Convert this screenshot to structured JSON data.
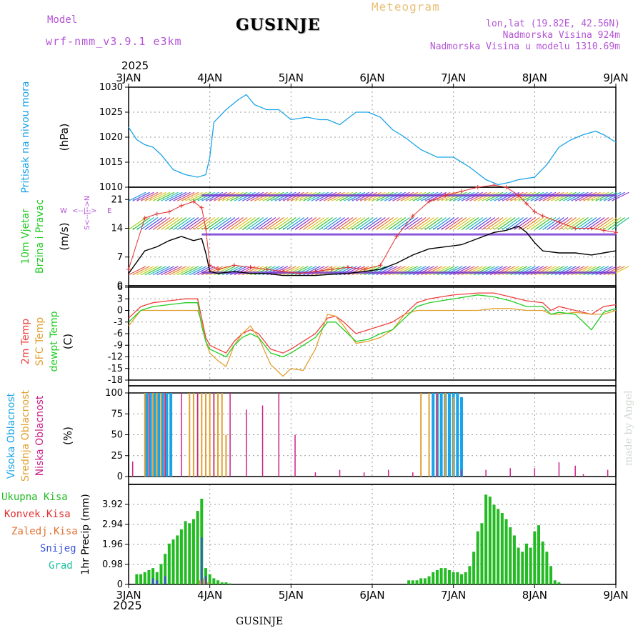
{
  "header": {
    "model_label": "Model",
    "model_name": "wrf-nmm_v3.9.1 e3km",
    "station": "GUSINJE",
    "title": "Meteogram",
    "coords": "lon,lat (19.82E, 42.56N)",
    "elevation": "Nadmorska Visina 924m",
    "model_elevation": "Nadmorska Visina u modelu 1310.69m",
    "year": "2025",
    "bottom_station": "GUSINJE",
    "credit": "made by Angel"
  },
  "colors": {
    "header_purple": "#b455d6",
    "header_orange": "#e8c07a",
    "pressure": "#1aa3e8",
    "temp2m": "#f04040",
    "sfc_temp": "#e0a030",
    "dewpt": "#22cc22",
    "high_cloud": "#1aa3e8",
    "mid_cloud": "#e0a030",
    "low_cloud": "#cc2288",
    "rain": "#22bb22",
    "snow": "#3a55d6"
  },
  "chart_data": [
    {
      "type": "line",
      "panel": "pressure",
      "title": "Pritisak na nivou mora",
      "ylabel": "(hPa)",
      "ylim": [
        1010,
        1030
      ],
      "yticks": [
        "1030",
        "1025",
        "1020",
        "1015",
        "1010"
      ],
      "x_days": [
        "3JAN",
        "4JAN",
        "5JAN",
        "6JAN",
        "7JAN",
        "8JAN",
        "9JAN"
      ],
      "x": [
        0,
        0.1,
        0.2,
        0.3,
        0.4,
        0.55,
        0.7,
        0.85,
        0.95,
        1.0,
        1.05,
        1.2,
        1.35,
        1.45,
        1.55,
        1.7,
        1.85,
        2.0,
        2.2,
        2.35,
        2.45,
        2.6,
        2.8,
        2.95,
        3.1,
        3.25,
        3.4,
        3.6,
        3.8,
        4.0,
        4.2,
        4.4,
        4.55,
        4.7,
        4.8,
        5.0,
        5.15,
        5.3,
        5.45,
        5.6,
        5.75,
        5.85,
        6.0
      ],
      "values": [
        1022,
        1019.5,
        1018.5,
        1018,
        1016.5,
        1013.5,
        1012.5,
        1012,
        1012.5,
        1016,
        1023,
        1025.5,
        1027.5,
        1028.5,
        1026.5,
        1025.5,
        1025.5,
        1023.5,
        1024,
        1023.5,
        1023.5,
        1022.5,
        1025,
        1025,
        1024,
        1021.5,
        1020,
        1017.5,
        1016,
        1016,
        1014,
        1011.5,
        1010.5,
        1011,
        1011.5,
        1012,
        1014.5,
        1018,
        1019.5,
        1020.5,
        1021.2,
        1020.5,
        1019
      ]
    },
    {
      "type": "line",
      "panel": "wind",
      "title": "10m Vjetar",
      "subtitle": "Brzina i Pravac",
      "ylabel": "(m/s)",
      "ylim": [
        0,
        24
      ],
      "yticks": [
        "21",
        "14",
        "7",
        "0"
      ],
      "direction_legend": [
        "W",
        "<--|-->",
        "E",
        "S<--|-->N"
      ],
      "x": [
        0,
        0.2,
        0.35,
        0.5,
        0.65,
        0.8,
        0.9,
        0.95,
        1.0,
        1.1,
        1.3,
        1.5,
        1.7,
        1.9,
        2.1,
        2.3,
        2.5,
        2.7,
        2.9,
        3.1,
        3.3,
        3.5,
        3.7,
        3.9,
        4.1,
        4.3,
        4.5,
        4.65,
        4.8,
        4.9,
        5.0,
        5.1,
        5.3,
        5.5,
        5.7,
        5.85,
        6.0
      ],
      "speed": [
        3,
        8.5,
        9.5,
        11,
        12,
        11,
        11.5,
        8,
        3.5,
        3,
        3.5,
        3,
        3,
        2.5,
        2.5,
        2.5,
        2.8,
        3,
        3.5,
        4,
        5.5,
        7.5,
        9,
        9.5,
        10,
        11.5,
        13,
        13.5,
        14.5,
        13,
        10.5,
        8.5,
        8,
        8,
        7.5,
        8,
        8.5
      ],
      "gusts": [
        4,
        16.5,
        17.5,
        18,
        19.5,
        20.5,
        19,
        14,
        5,
        4,
        5,
        4.5,
        4,
        3.5,
        3,
        3.5,
        4,
        4.5,
        4,
        5,
        12,
        17,
        20.5,
        22,
        23,
        24,
        24.5,
        24,
        22,
        20,
        18,
        17,
        15.5,
        14,
        14,
        13.5,
        13
      ]
    },
    {
      "type": "line",
      "panel": "temperature",
      "titles": [
        "2m Temp",
        "SFC Temp",
        "dewpt Temp"
      ],
      "ylabel": "(C)",
      "ylim": [
        -18,
        6
      ],
      "yticks": [
        "6",
        "3",
        "0",
        "-3",
        "-6",
        "-9",
        "-12",
        "-15",
        "-18"
      ],
      "x": [
        0,
        0.15,
        0.3,
        0.5,
        0.7,
        0.85,
        0.9,
        0.95,
        1.0,
        1.1,
        1.2,
        1.3,
        1.4,
        1.5,
        1.6,
        1.75,
        1.9,
        2.0,
        2.15,
        2.3,
        2.45,
        2.55,
        2.65,
        2.8,
        2.95,
        3.1,
        3.25,
        3.4,
        3.55,
        3.7,
        3.85,
        4.0,
        4.3,
        4.5,
        4.7,
        4.9,
        5.1,
        5.2,
        5.3,
        5.5,
        5.7,
        5.85,
        6.0
      ],
      "series": [
        {
          "name": "2m Temp",
          "values": [
            -2,
            1,
            2,
            2.5,
            3,
            3,
            -2,
            -7,
            -9,
            -10,
            -11,
            -8,
            -6,
            -5,
            -6,
            -10,
            -11,
            -10,
            -8,
            -6,
            -2,
            -1.5,
            -3,
            -6,
            -5,
            -4,
            -3,
            -1,
            2,
            3,
            3.5,
            4,
            4.5,
            4.5,
            3.5,
            2.5,
            2,
            0,
            1,
            0,
            -1,
            1,
            1.5
          ]
        },
        {
          "name": "SFC Temp",
          "values": [
            -4,
            0,
            0,
            0,
            0,
            0,
            -3,
            -8,
            -11,
            -13,
            -14.5,
            -9,
            -6,
            -4,
            -7,
            -14,
            -17,
            -15,
            -15.5,
            -10,
            -1,
            -1.5,
            -4,
            -8.5,
            -8,
            -7,
            -5,
            -1,
            0,
            0,
            0,
            0,
            0,
            0.5,
            0.5,
            0,
            0,
            -1,
            -1,
            -0.5,
            -1,
            -1,
            0
          ]
        },
        {
          "name": "dewpt Temp",
          "values": [
            -3,
            0,
            1,
            1.5,
            2,
            2,
            -4,
            -8,
            -10,
            -11,
            -12,
            -9,
            -7,
            -6,
            -7,
            -11,
            -12,
            -11,
            -9,
            -7,
            -3,
            -3,
            -5,
            -8,
            -7.5,
            -6,
            -5,
            -2,
            1,
            2,
            2.5,
            3,
            4,
            3.5,
            2.5,
            1,
            1,
            -1,
            -0.5,
            -1,
            -5,
            -0.5,
            0.5
          ]
        }
      ]
    },
    {
      "type": "bar",
      "panel": "clouds",
      "titles": [
        "Visoka Oblacnost",
        "Srednja Oblacnost",
        "Niska Oblacnost"
      ],
      "ylabel": "(%)",
      "ylim": [
        0,
        100
      ],
      "yticks": [
        "100",
        "75",
        "50",
        "25",
        "0"
      ],
      "series": [
        {
          "name": "Visoka Oblacnost",
          "x": [
            0.22,
            0.27,
            0.32,
            0.37,
            0.42,
            0.47,
            0.52,
            3.75,
            3.8,
            3.85,
            3.9,
            3.95,
            4.0,
            4.05,
            4.1
          ],
          "values": [
            100,
            100,
            100,
            100,
            100,
            100,
            100,
            100,
            100,
            100,
            100,
            100,
            100,
            100,
            95
          ]
        },
        {
          "name": "Srednja Oblacnost",
          "x": [
            0.2,
            0.25,
            0.3,
            0.35,
            0.4,
            0.45,
            0.75,
            0.8,
            0.85,
            0.9,
            0.95,
            1.0,
            1.05,
            1.1,
            1.15,
            1.2,
            3.5,
            3.6,
            3.7,
            3.8,
            3.9,
            4.0
          ],
          "values": [
            100,
            100,
            100,
            100,
            100,
            100,
            100,
            100,
            100,
            100,
            100,
            100,
            100,
            100,
            100,
            50,
            0,
            100,
            100,
            100,
            100,
            95
          ]
        },
        {
          "name": "Niska Oblacnost",
          "x": [
            0.05,
            0.25,
            0.45,
            0.65,
            0.85,
            1.05,
            1.25,
            1.45,
            1.65,
            1.85,
            2.05,
            2.3,
            2.6,
            2.9,
            3.2,
            3.5,
            3.8,
            4.1,
            4.4,
            4.7,
            5.0,
            5.3,
            5.5,
            5.6,
            5.9
          ],
          "values": [
            18,
            100,
            100,
            100,
            100,
            100,
            100,
            80,
            85,
            100,
            50,
            5,
            8,
            5,
            8,
            5,
            100,
            8,
            8,
            10,
            10,
            17,
            13,
            3,
            8
          ]
        }
      ]
    },
    {
      "type": "bar",
      "panel": "precipitation",
      "titles": [
        "Ukupna Kisa",
        "Konvek.Kisa",
        "Zaledj.Kisa",
        "Snijeg",
        "Grad"
      ],
      "ylabel": "1hr Precip (mm)",
      "ylim": [
        0,
        4.9
      ],
      "yticks": [
        "3.92",
        "2.94",
        "1.96",
        "0.98",
        "0"
      ],
      "x_days": [
        "3JAN",
        "4JAN",
        "5JAN",
        "6JAN",
        "7JAN",
        "8JAN",
        "9JAN"
      ],
      "year": "2025",
      "series": [
        {
          "name": "Ukupna Kisa",
          "x": [
            0.1,
            0.15,
            0.2,
            0.25,
            0.3,
            0.35,
            0.4,
            0.45,
            0.5,
            0.55,
            0.6,
            0.65,
            0.7,
            0.75,
            0.8,
            0.85,
            0.9,
            0.95,
            1.0,
            1.05,
            1.1,
            1.15,
            1.2,
            1.25,
            3.45,
            3.5,
            3.55,
            3.6,
            3.65,
            3.7,
            3.75,
            3.8,
            3.85,
            3.9,
            3.95,
            4.0,
            4.05,
            4.1,
            4.15,
            4.2,
            4.25,
            4.3,
            4.35,
            4.4,
            4.45,
            4.5,
            4.55,
            4.6,
            4.65,
            4.7,
            4.75,
            4.8,
            4.85,
            4.9,
            4.95,
            5.0,
            5.05,
            5.1,
            5.15,
            5.2,
            5.25,
            5.3
          ],
          "values": [
            0.5,
            0.5,
            0.6,
            0.7,
            0.8,
            0.6,
            1.0,
            1.5,
            2.0,
            2.2,
            2.4,
            2.7,
            3.1,
            3.0,
            3.2,
            3.6,
            4.2,
            0.8,
            0.5,
            0.3,
            0.2,
            0.1,
            0.1,
            0.05,
            0.2,
            0.2,
            0.2,
            0.3,
            0.3,
            0.4,
            0.6,
            0.7,
            0.8,
            0.8,
            0.7,
            0.6,
            0.6,
            0.5,
            0.6,
            0.9,
            1.6,
            2.6,
            3.0,
            4.4,
            4.3,
            3.9,
            3.7,
            3.5,
            3.2,
            2.8,
            2.4,
            1.8,
            1.6,
            2.0,
            1.8,
            2.6,
            2.9,
            2.1,
            1.6,
            0.9,
            0.2,
            0.1
          ]
        },
        {
          "name": "Snijeg",
          "x": [
            0.3,
            0.35,
            0.45,
            0.9,
            0.95
          ],
          "values": [
            0.3,
            0.2,
            0.4,
            2.3,
            0.4
          ]
        },
        {
          "name": "Zaledj.Kisa",
          "x": [
            0.88,
            0.93,
            0.98
          ],
          "values": [
            0.2,
            0.3,
            0.1
          ]
        }
      ]
    }
  ]
}
